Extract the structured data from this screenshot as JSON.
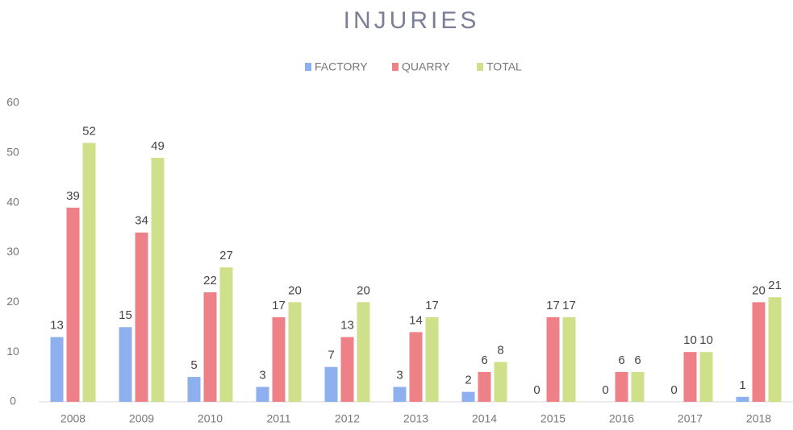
{
  "chart_data": {
    "type": "bar",
    "title": "INJURIES",
    "categories": [
      "2008",
      "2009",
      "2010",
      "2011",
      "2012",
      "2013",
      "2014",
      "2015",
      "2016",
      "2017",
      "2018"
    ],
    "series": [
      {
        "name": "FACTORY",
        "color": "#8fb0ee",
        "values": [
          13,
          15,
          5,
          3,
          7,
          3,
          2,
          0,
          0,
          0,
          1
        ]
      },
      {
        "name": "QUARRY",
        "color": "#ee8088",
        "values": [
          39,
          34,
          22,
          17,
          13,
          14,
          6,
          17,
          6,
          10,
          20
        ]
      },
      {
        "name": "TOTAL",
        "color": "#cfe08a",
        "values": [
          52,
          49,
          27,
          20,
          20,
          17,
          8,
          17,
          6,
          10,
          21
        ]
      }
    ],
    "ylim": [
      0,
      60
    ],
    "yticks": [
      0,
      10,
      20,
      30,
      40,
      50,
      60
    ],
    "grid": false,
    "legend": "top"
  }
}
